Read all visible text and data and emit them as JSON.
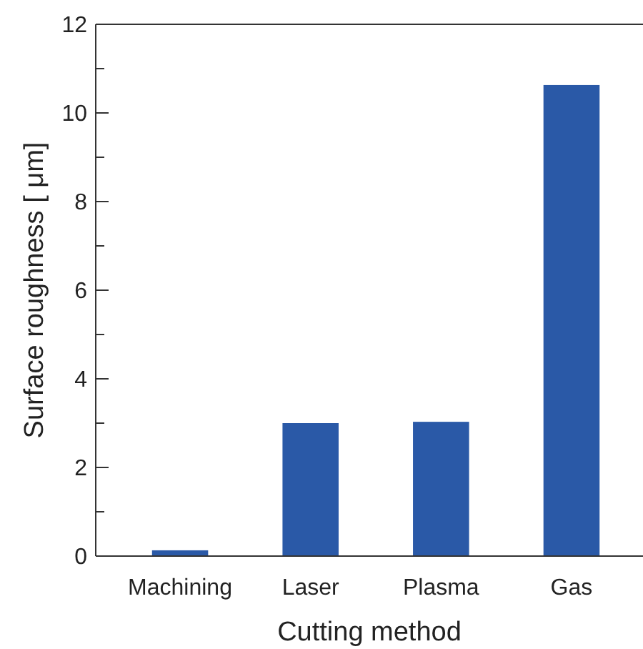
{
  "chart_data": {
    "type": "bar",
    "xlabel": "Cutting method",
    "ylabel": "Surface roughness [ μm]",
    "categories": [
      "Machining",
      "Laser",
      "Plasma",
      "Gas"
    ],
    "values": [
      0.13,
      3.0,
      3.03,
      10.63
    ],
    "color": "#2a59a7",
    "ylim": [
      0,
      12
    ],
    "yticks": [
      0,
      {
        "value": 1,
        "label": null
      },
      2,
      {
        "value": 3,
        "label": null
      },
      4,
      {
        "value": 5,
        "label": null
      },
      6,
      {
        "value": 7,
        "label": null
      },
      8,
      {
        "value": 9,
        "label": null
      },
      10,
      {
        "value": 11,
        "label": null
      },
      12
    ]
  }
}
